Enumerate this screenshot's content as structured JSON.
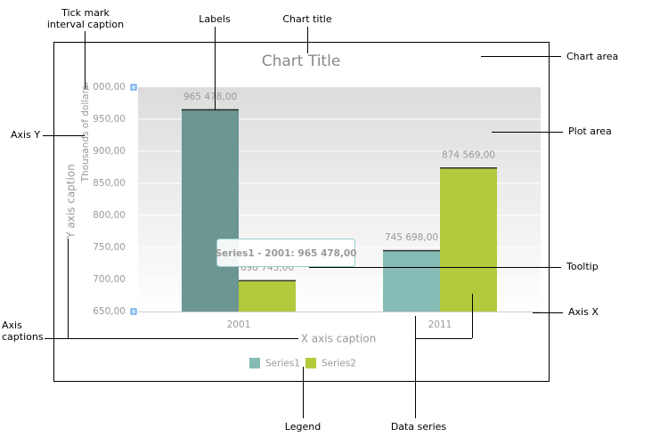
{
  "chart_data": {
    "type": "bar",
    "title": "Chart Title",
    "x_label": "X axis caption",
    "y_label": "Y axis caption",
    "y_unit_label": "Thousands of dollars",
    "categories": [
      "2001",
      "2011"
    ],
    "series": [
      {
        "name": "Series1",
        "color": "#86bbb6",
        "values": [
          965.478,
          745.698
        ],
        "value_labels": [
          "965 478,00",
          "745 698,00"
        ]
      },
      {
        "name": "Series2",
        "color": "#b3ca3c",
        "values": [
          698.745,
          874.569
        ],
        "value_labels": [
          "698 745,00",
          "874 569,00"
        ]
      }
    ],
    "ylim": [
      650,
      1000
    ],
    "yticks": [
      {
        "value": 650,
        "label": "650,00"
      },
      {
        "value": 700,
        "label": "700,00"
      },
      {
        "value": 750,
        "label": "750,00"
      },
      {
        "value": 800,
        "label": "800,00"
      },
      {
        "value": 850,
        "label": "850,00"
      },
      {
        "value": 900,
        "label": "900,00"
      },
      {
        "value": 950,
        "label": "950,00"
      },
      {
        "value": 1000,
        "label": "1 000,00"
      }
    ],
    "grid": true,
    "legend": "bottom",
    "tooltip": "Series1 - 2001: 965 478,00",
    "annotations": [
      [
        "Tick mark",
        "interval caption"
      ],
      [
        "Labels"
      ],
      [
        "Chart title"
      ],
      [
        "Chart area"
      ],
      [
        "Axis Y"
      ],
      [
        "Plot area"
      ],
      [
        "Tooltip"
      ],
      [
        "Axis X"
      ],
      [
        "Axis",
        "captions"
      ],
      [
        "Legend"
      ],
      [
        "Data series"
      ]
    ]
  }
}
